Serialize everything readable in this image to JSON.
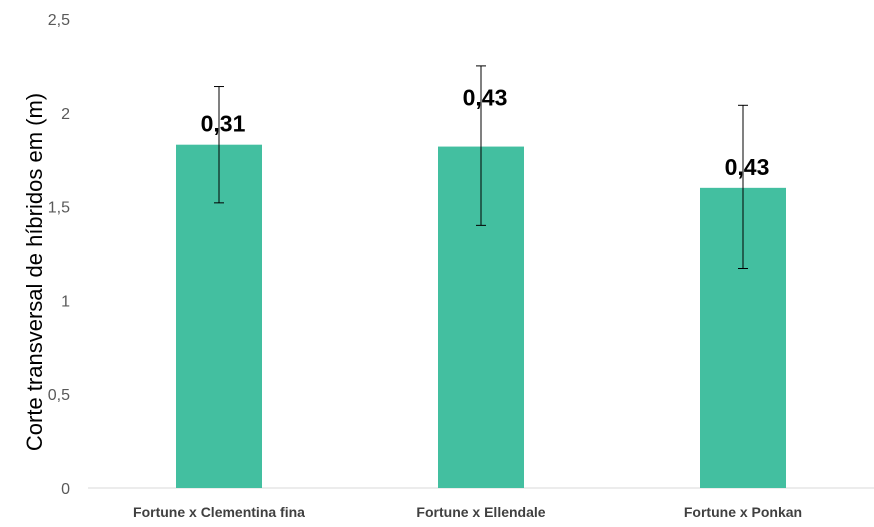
{
  "chart_data": {
    "type": "bar",
    "title": "",
    "xlabel": "",
    "ylabel": "Corte transversal de  híbridos em (m)",
    "ylim": [
      0,
      2.5
    ],
    "yticks": [
      0,
      0.5,
      1,
      1.5,
      2,
      2.5
    ],
    "ytick_labels": [
      "0",
      "0,5",
      "1",
      "1,5",
      "2",
      "2,5"
    ],
    "categories": [
      "Fortune x Clementina fina",
      "Fortune x Ellendale",
      "Fortune x Ponkan"
    ],
    "values": [
      1.83,
      1.82,
      1.6
    ],
    "error_low": [
      1.52,
      1.4,
      1.17
    ],
    "error_high": [
      2.14,
      2.25,
      2.04
    ],
    "data_labels": [
      "0,31",
      "0,43",
      "0,43"
    ],
    "bar_color": "#43BFA0",
    "grid": false,
    "legend": "none"
  }
}
